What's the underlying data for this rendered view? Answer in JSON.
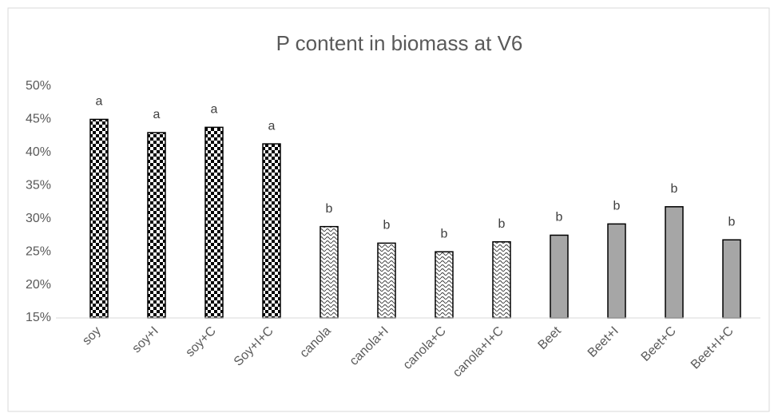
{
  "chart_data": {
    "type": "bar",
    "title": "P content in biomass at V6",
    "categories": [
      "soy",
      "soy+I",
      "soy+C",
      "Soy+I+C",
      "canola",
      "canola+I",
      "canola+C",
      "canola+I+C",
      "Beet",
      "Beet+I",
      "Beet+C",
      "Beet+I+C"
    ],
    "values": [
      45,
      43,
      43.8,
      41.3,
      28.8,
      26.3,
      25,
      26.5,
      27.5,
      29.2,
      31.8,
      26.8
    ],
    "annotations": [
      "a",
      "a",
      "a",
      "a",
      "b",
      "b",
      "b",
      "b",
      "b",
      "b",
      "b",
      "b"
    ],
    "fills": [
      "checker",
      "checker",
      "checker",
      "checker",
      "wave",
      "wave",
      "wave",
      "wave",
      "#a6a6a6",
      "#a6a6a6",
      "#a6a6a6",
      "#a6a6a6"
    ],
    "ylim": [
      15,
      50
    ],
    "yticks": [
      {
        "value": 15,
        "label": "15%"
      },
      {
        "value": 20,
        "label": "20%"
      },
      {
        "value": 25,
        "label": "25%"
      },
      {
        "value": 30,
        "label": "30%"
      },
      {
        "value": 35,
        "label": "35%"
      },
      {
        "value": 40,
        "label": "40%"
      },
      {
        "value": 45,
        "label": "45%"
      },
      {
        "value": 50,
        "label": "50%"
      }
    ],
    "grid": false
  }
}
